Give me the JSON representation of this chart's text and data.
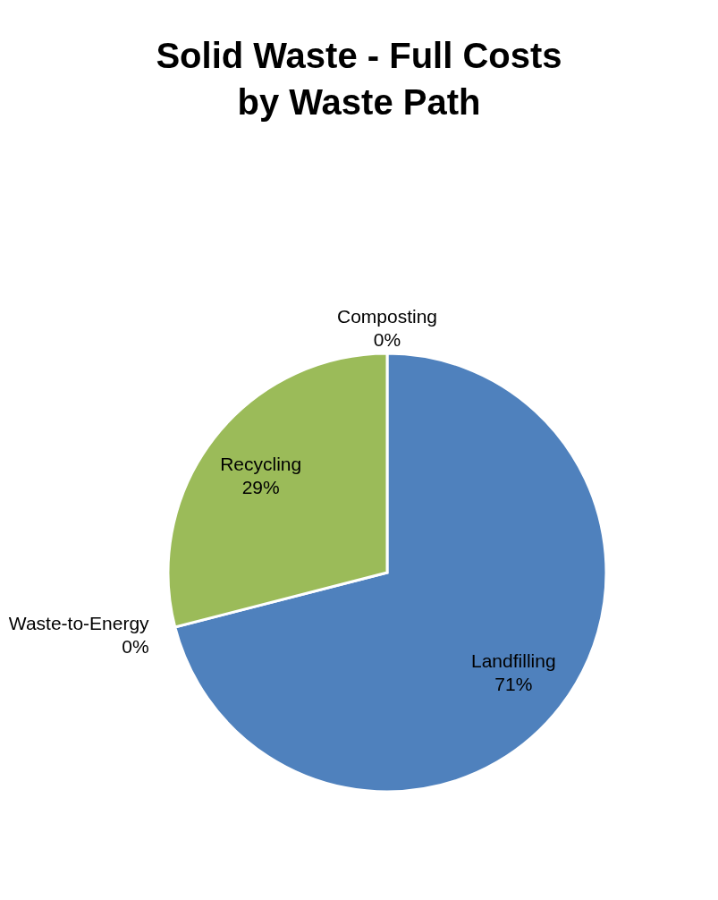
{
  "chart_data": {
    "type": "pie",
    "title": "Solid Waste - Full Costs by Waste Path",
    "categories": [
      "Landfilling",
      "Waste-to-Energy",
      "Recycling",
      "Composting"
    ],
    "values": [
      71,
      0,
      29,
      0
    ],
    "colors": [
      "#4f81bd",
      "#c0504d",
      "#9bbb59",
      "#8064a2"
    ],
    "value_labels": [
      "71%",
      "0%",
      "29%",
      "0%"
    ],
    "legend": false
  }
}
